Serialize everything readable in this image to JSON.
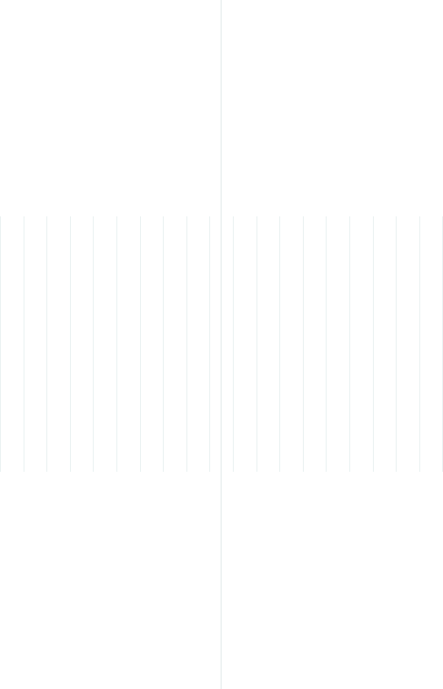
{
  "colors": {
    "background": "#ffffff",
    "divider": "#dfe7e7",
    "stripe": "#e6eeee"
  },
  "decor": {
    "stripe_count": 20
  }
}
